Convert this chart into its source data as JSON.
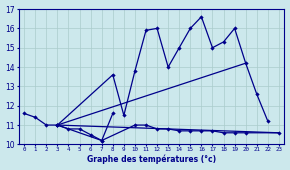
{
  "xlabel": "Graphe des températures (°c)",
  "bg_color": "#cce8ec",
  "line_color": "#00008b",
  "grid_color": "#aacccc",
  "xlim": [
    -0.5,
    23.5
  ],
  "ylim": [
    10.0,
    17.0
  ],
  "x_ticks": [
    0,
    1,
    2,
    3,
    4,
    5,
    6,
    7,
    8,
    9,
    10,
    11,
    12,
    13,
    14,
    15,
    16,
    17,
    18,
    19,
    20,
    21,
    22,
    23
  ],
  "y_ticks": [
    10,
    11,
    12,
    13,
    14,
    15,
    16,
    17
  ],
  "series1_x": [
    0,
    1,
    2,
    3,
    4,
    5,
    6,
    7,
    8
  ],
  "series1_y": [
    11.6,
    11.4,
    11.0,
    11.0,
    10.8,
    10.8,
    10.5,
    10.2,
    11.6
  ],
  "series2_x": [
    3,
    7,
    10,
    11,
    12,
    13,
    14,
    15,
    16,
    17,
    18,
    19,
    20,
    23
  ],
  "series2_y": [
    11.0,
    10.2,
    11.0,
    11.0,
    10.8,
    10.8,
    10.7,
    10.7,
    10.7,
    10.7,
    10.6,
    10.6,
    10.6,
    10.6
  ],
  "series3_x": [
    3,
    8,
    9,
    10,
    11,
    12,
    13,
    14,
    15,
    16,
    17,
    18,
    19,
    20,
    21,
    22
  ],
  "series3_y": [
    11.0,
    13.6,
    11.5,
    13.8,
    15.9,
    16.0,
    14.0,
    15.0,
    16.0,
    16.6,
    15.0,
    15.3,
    16.0,
    14.2,
    12.6,
    11.2
  ],
  "trend1_x": [
    3,
    20
  ],
  "trend1_y": [
    11.0,
    14.2
  ],
  "trend2_x": [
    3,
    23
  ],
  "trend2_y": [
    11.0,
    10.6
  ]
}
